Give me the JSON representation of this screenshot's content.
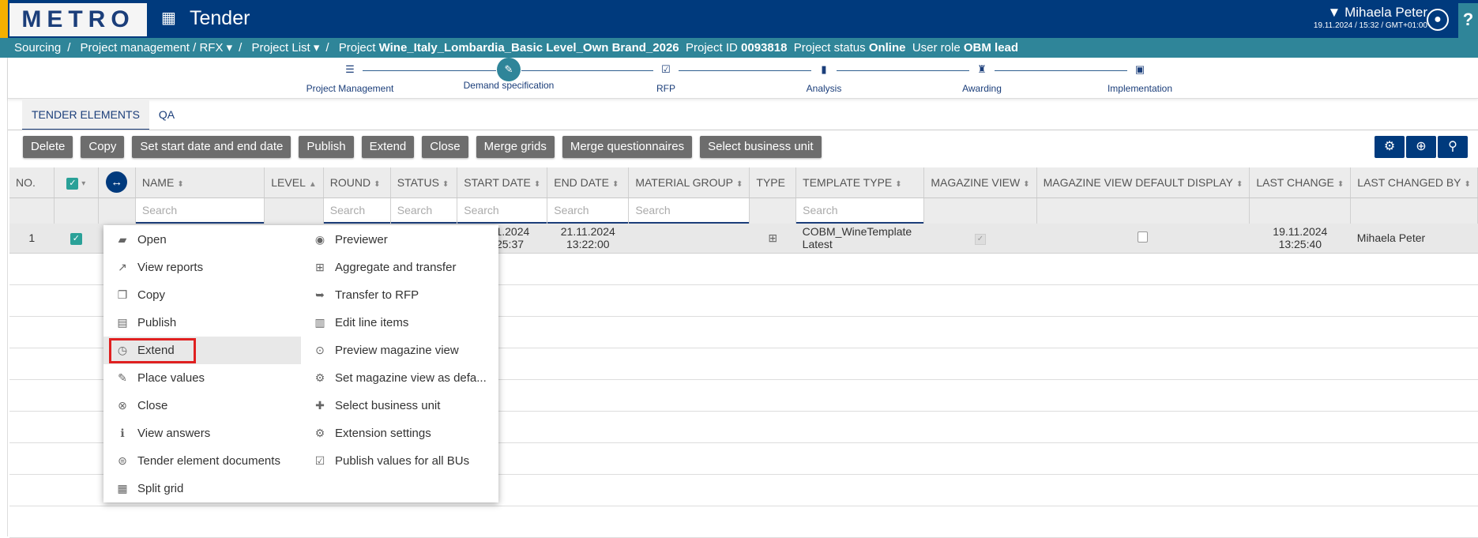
{
  "header": {
    "logo": "METRO",
    "app_title": "Tender",
    "user_name": "Mihaela Peter",
    "datetime": "19.11.2024 / 15:32 / GMT+01:00",
    "help": "?",
    "brand_color": "#003a7d",
    "accent_color": "#2f8599"
  },
  "breadcrumb": {
    "items": [
      "Sourcing",
      "Project management / RFX ▾",
      "Project List ▾"
    ],
    "project_label": "Project",
    "project_name": "Wine_Italy_Lombardia_Basic Level_Own Brand_2026",
    "id_label": "Project ID",
    "project_id": "0093818",
    "status_label": "Project status",
    "status": "Online",
    "role_label": "User role",
    "role": "OBM lead"
  },
  "steps": [
    {
      "label": "Project Management",
      "icon": "list-icon"
    },
    {
      "label": "Demand specification",
      "icon": "pen-icon",
      "active": true
    },
    {
      "label": "RFP",
      "icon": "checklist-icon"
    },
    {
      "label": "Analysis",
      "icon": "bar-chart-icon"
    },
    {
      "label": "Awarding",
      "icon": "award-icon"
    },
    {
      "label": "Implementation",
      "icon": "report-icon"
    }
  ],
  "tabs": [
    {
      "label": "TENDER ELEMENTS",
      "active": true
    },
    {
      "label": "QA"
    }
  ],
  "toolbar": [
    "Delete",
    "Copy",
    "Set start date and end date",
    "Publish",
    "Extend",
    "Close",
    "Merge grids",
    "Merge questionnaires",
    "Select business unit"
  ],
  "tools": [
    {
      "icon": "gear-icon"
    },
    {
      "icon": "zoom-in-icon"
    },
    {
      "icon": "search-icon"
    }
  ],
  "table": {
    "search_placeholder": "Search",
    "columns": [
      {
        "label": "NO.",
        "sort": ""
      },
      {
        "label": "",
        "sort": "",
        "kind": "check"
      },
      {
        "label": "",
        "sort": "",
        "kind": "swap"
      },
      {
        "label": "NAME",
        "sort": "both",
        "search": true
      },
      {
        "label": "LEVEL",
        "sort": "asc"
      },
      {
        "label": "ROUND",
        "sort": "both",
        "search": true
      },
      {
        "label": "STATUS",
        "sort": "both",
        "search": true
      },
      {
        "label": "START DATE",
        "sort": "both",
        "search": true
      },
      {
        "label": "END DATE",
        "sort": "both",
        "search": true
      },
      {
        "label": "MATERIAL GROUP",
        "sort": "both",
        "search": true
      },
      {
        "label": "TYPE",
        "sort": ""
      },
      {
        "label": "TEMPLATE TYPE",
        "sort": "both",
        "search": true
      },
      {
        "label": "MAGAZINE VIEW",
        "sort": "both"
      },
      {
        "label": "MAGAZINE VIEW DEFAULT DISPLAY",
        "sort": "both"
      },
      {
        "label": "LAST CHANGE",
        "sort": "both"
      },
      {
        "label": "LAST CHANGED BY",
        "sort": "both"
      }
    ],
    "rows": [
      {
        "no": "1",
        "checked": true,
        "start_date": "19.11.2024",
        "start_time": "13:25:37",
        "end_date": "21.11.2024",
        "end_time": "13:22:00",
        "type_icon": "grid-transfer-icon",
        "template_type": "COBM_WineTemplate Latest",
        "magazine_view": true,
        "magazine_default": false,
        "last_change_date": "19.11.2024",
        "last_change_time": "13:25:40",
        "last_changed_by": "Mihaela Peter"
      }
    ]
  },
  "context_menu": {
    "left": [
      {
        "label": "Open",
        "icon": "folder-plus-icon"
      },
      {
        "label": "View reports",
        "icon": "line-chart-icon"
      },
      {
        "label": "Copy",
        "icon": "copy-icon"
      },
      {
        "label": "Publish",
        "icon": "publish-icon"
      },
      {
        "label": "Extend",
        "icon": "clock-document-icon",
        "highlighted": true
      },
      {
        "label": "Place values",
        "icon": "edit-document-icon"
      },
      {
        "label": "Close",
        "icon": "close-circle-icon"
      },
      {
        "label": "View answers",
        "icon": "info-document-icon"
      },
      {
        "label": "Tender element documents",
        "icon": "attachment-icon"
      },
      {
        "label": "Split grid",
        "icon": "split-grid-icon"
      }
    ],
    "right": [
      {
        "label": "Previewer",
        "icon": "eye-icon"
      },
      {
        "label": "Aggregate and transfer",
        "icon": "grid-transfer-icon"
      },
      {
        "label": "Transfer to RFP",
        "icon": "chat-arrow-icon"
      },
      {
        "label": "Edit line items",
        "icon": "film-grid-icon"
      },
      {
        "label": "Preview magazine view",
        "icon": "magnifier-document-icon"
      },
      {
        "label": "Set magazine view as defa...",
        "icon": "gear-document-icon"
      },
      {
        "label": "Select business unit",
        "icon": "globe-plus-icon"
      },
      {
        "label": "Extension settings",
        "icon": "gear-icon"
      },
      {
        "label": "Publish values for all BUs",
        "icon": "check-document-icon"
      }
    ]
  }
}
